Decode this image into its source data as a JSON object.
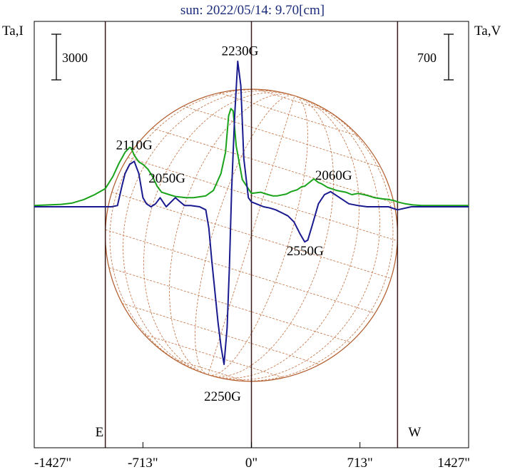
{
  "chart_data": {
    "type": "line",
    "title": "sun: 2022/05/14: 9.70[cm]",
    "ylabel_left": "Ta,I",
    "ylabel_right": "Ta,V",
    "scale_left": "3000",
    "scale_right": "700",
    "x_ticks": [
      "-1427\"",
      "-713\"",
      "0\"",
      "713\"",
      "1427\""
    ],
    "x_tick_values": [
      -1427,
      -713,
      0,
      713,
      1427
    ],
    "xlim": [
      -1427,
      1427
    ],
    "limb_markers": [
      {
        "label": "E",
        "x": -960
      },
      {
        "label": "W",
        "x": 960
      }
    ],
    "series": [
      {
        "name": "",
        "color": "#1aa31a",
        "x": [
          -1427,
          -1330,
          -1250,
          -1180,
          -1100,
          -1030,
          -960,
          -910,
          -870,
          -830,
          -800,
          -790,
          -770,
          -740,
          -713,
          -680,
          -650,
          -620,
          -590,
          -540,
          -500,
          -430,
          -380,
          -300,
          -250,
          -200,
          -170,
          -150,
          -135,
          -120,
          -100,
          -60,
          0,
          60,
          110,
          140,
          170,
          230,
          260,
          300,
          330,
          350,
          380,
          410,
          440,
          460,
          500,
          560,
          620,
          660,
          700,
          740,
          770,
          810,
          860,
          900,
          940,
          960,
          1010,
          1060,
          1120,
          1200,
          1300,
          1427
        ],
        "y": [
          0.02,
          0.03,
          0.04,
          0.06,
          0.12,
          0.2,
          0.3,
          0.5,
          0.72,
          0.9,
          0.98,
          0.97,
          0.85,
          0.74,
          0.7,
          0.62,
          0.5,
          0.34,
          0.24,
          0.2,
          0.17,
          0.15,
          0.15,
          0.18,
          0.27,
          0.55,
          0.9,
          1.5,
          1.62,
          1.58,
          1.0,
          0.45,
          0.22,
          0.24,
          0.2,
          0.18,
          0.18,
          0.21,
          0.25,
          0.28,
          0.33,
          0.34,
          0.4,
          0.46,
          0.4,
          0.38,
          0.32,
          0.27,
          0.24,
          0.2,
          0.22,
          0.2,
          0.18,
          0.15,
          0.13,
          0.12,
          0.1,
          0.08,
          0.05,
          0.03,
          0.02,
          0.02,
          0.02,
          0.02
        ]
      },
      {
        "name": "",
        "color": "#1a1a8f",
        "x": [
          -1427,
          -1100,
          -1020,
          -960,
          -920,
          -880,
          -850,
          -830,
          -800,
          -770,
          -740,
          -713,
          -690,
          -660,
          -630,
          -600,
          -560,
          -500,
          -440,
          -400,
          -340,
          -300,
          -280,
          -260,
          -240,
          -220,
          -200,
          -180,
          -160,
          -145,
          -130,
          -110,
          -90,
          -70,
          -50,
          -20,
          0,
          40,
          80,
          120,
          160,
          200,
          240,
          280,
          320,
          350,
          370,
          400,
          440,
          480,
          520,
          580,
          640,
          700,
          760,
          820,
          900,
          960,
          1050,
          1200,
          1427
        ],
        "y": [
          0,
          0,
          0,
          0,
          0,
          0.02,
          0.35,
          0.55,
          0.7,
          0.75,
          0.55,
          0.15,
          0.05,
          0.0,
          0.05,
          0.15,
          0.0,
          0.15,
          0.02,
          0.02,
          0.0,
          -0.05,
          -0.35,
          -0.9,
          -1.4,
          -1.9,
          -2.3,
          -2.6,
          -2.0,
          -1.0,
          0.3,
          1.5,
          2.4,
          2.0,
          0.8,
          0.15,
          0.08,
          0.04,
          0.0,
          -0.02,
          -0.05,
          -0.1,
          -0.15,
          -0.25,
          -0.45,
          -0.58,
          -0.55,
          -0.3,
          0.05,
          0.2,
          0.25,
          0.15,
          0.05,
          0.02,
          0.0,
          0.0,
          0.0,
          -0.05,
          0.0,
          0.0,
          0.0
        ]
      }
    ],
    "annotations": [
      {
        "text": "2110G",
        "x": -770,
        "y": 0.95
      },
      {
        "text": "2050G",
        "x": -555,
        "y": 0.4
      },
      {
        "text": "2230G",
        "x": -75,
        "y": 2.5
      },
      {
        "text": "2060G",
        "x": 540,
        "y": 0.45
      },
      {
        "text": "2550G",
        "x": 353,
        "y": -0.8
      },
      {
        "text": "2250G",
        "x": -190,
        "y": -3.2
      }
    ],
    "grid": false,
    "solar_disk": true
  }
}
